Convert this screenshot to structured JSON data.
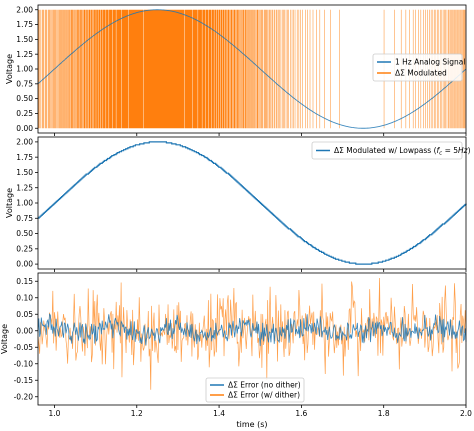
{
  "chart_data": [
    {
      "type": "line",
      "panel": "top",
      "ylabel": "Voltage",
      "xlim": [
        0.96,
        2.0
      ],
      "ylim": [
        -0.08,
        2.08
      ],
      "yticks": [
        0.0,
        0.25,
        0.5,
        0.75,
        1.0,
        1.25,
        1.5,
        1.75,
        2.0
      ],
      "ytick_labels": [
        "0.00",
        "0.25",
        "0.50",
        "0.75",
        "1.00",
        "1.25",
        "1.50",
        "1.75",
        "2.00"
      ],
      "xticks": [
        1.0,
        1.2,
        1.4,
        1.6,
        1.8,
        2.0
      ],
      "legend_position": "center-right",
      "series": [
        {
          "name": "1 Hz Analog Signal",
          "color": "#1f77b4",
          "kind": "sine",
          "offset": 1.0,
          "amplitude": 1.0,
          "frequency_hz": 1.0,
          "x_peak": 1.25,
          "x_trough": 1.75,
          "value_at_x_start": 0.77
        },
        {
          "name": "ΔΣ Modulated",
          "color": "#ff7f0e",
          "kind": "binary pulse train, levels 0 and 2, pulse density proportional to analog signal",
          "levels": [
            0.0,
            2.0
          ]
        }
      ]
    },
    {
      "type": "line",
      "panel": "middle",
      "ylabel": "Voltage",
      "xlim": [
        0.96,
        2.0
      ],
      "ylim": [
        -0.08,
        2.08
      ],
      "yticks": [
        0.0,
        0.25,
        0.5,
        0.75,
        1.0,
        1.25,
        1.5,
        1.75,
        2.0
      ],
      "ytick_labels": [
        "0.00",
        "0.25",
        "0.50",
        "0.75",
        "1.00",
        "1.25",
        "1.50",
        "1.75",
        "2.00"
      ],
      "xticks": [
        1.0,
        1.2,
        1.4,
        1.6,
        1.8,
        2.0
      ],
      "legend_position": "top-right",
      "series": [
        {
          "name": "ΔΣ Modulated w/ Lowpass (f_c = 5Hz)",
          "legend_prefix": "ΔΣ Modulated w/ Lowpass (",
          "legend_var": "f",
          "legend_sub": "c",
          "legend_suffix": " = 5",
          "legend_unit": "Hz",
          "legend_close": ")",
          "color": "#1f77b4",
          "kind": "staircase sine",
          "offset": 1.0,
          "amplitude": 1.0,
          "frequency_hz": 1.0,
          "step_size_v": 0.016,
          "x_peak": 1.25,
          "x_trough": 1.75,
          "value_at_x_start": 0.77
        }
      ]
    },
    {
      "type": "line",
      "panel": "bottom",
      "ylabel": "Voltage",
      "xlabel": "time (s)",
      "xlim": [
        0.96,
        2.0
      ],
      "ylim": [
        -0.225,
        0.175
      ],
      "yticks": [
        -0.2,
        -0.15,
        -0.1,
        -0.05,
        0.0,
        0.05,
        0.1,
        0.15
      ],
      "ytick_labels": [
        "-0.20",
        "-0.15",
        "-0.10",
        "-0.05",
        "0.00",
        "0.05",
        "0.10",
        "0.15"
      ],
      "xticks": [
        1.0,
        1.2,
        1.4,
        1.6,
        1.8,
        2.0
      ],
      "xtick_labels": [
        "1.0",
        "1.2",
        "1.4",
        "1.6",
        "1.8",
        "2.0"
      ],
      "legend_position": "bottom-center",
      "series": [
        {
          "name": "ΔΣ Error (no dither)",
          "color": "#1f77b4",
          "kind": "noise",
          "range": [
            -0.05,
            0.05
          ]
        },
        {
          "name": "ΔΣ Error (w/ dither)",
          "color": "#ff7f0e",
          "kind": "noise",
          "range": [
            -0.2,
            0.16
          ]
        }
      ]
    }
  ]
}
